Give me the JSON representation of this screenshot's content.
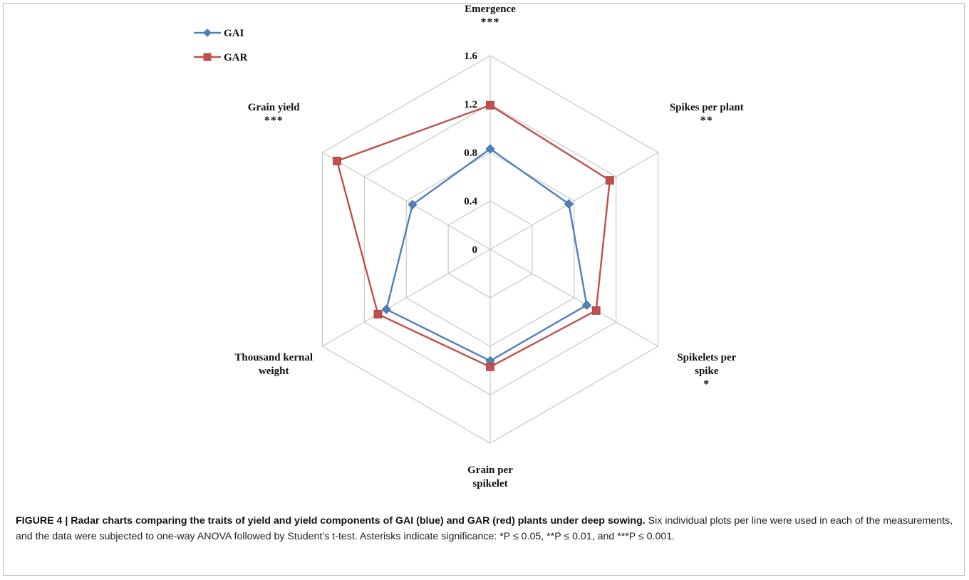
{
  "chart_data": {
    "type": "radar",
    "axes": [
      {
        "label": [
          "Emergence"
        ],
        "sig": "***"
      },
      {
        "label": [
          "Spikes per plant"
        ],
        "sig": "**"
      },
      {
        "label": [
          "Spikelets per",
          "spike"
        ],
        "sig": "*"
      },
      {
        "label": [
          "Grain per",
          "spikelet"
        ],
        "sig": ""
      },
      {
        "label": [
          "Thousand kernal",
          "weight"
        ],
        "sig": ""
      },
      {
        "label": [
          "Grain yield"
        ],
        "sig": "***"
      }
    ],
    "ticks": [
      0,
      0.4,
      0.8,
      1.2,
      1.6
    ],
    "tick_labels": [
      "0",
      "0.4",
      "0.8",
      "1.2",
      "1.6"
    ],
    "range": [
      0,
      1.6
    ],
    "grid": true,
    "legend_position": "top-left",
    "series": [
      {
        "name": "GAI",
        "color": "#4f81bd",
        "marker": "diamond",
        "values": [
          0.83,
          0.75,
          0.92,
          0.92,
          0.99,
          0.74
        ]
      },
      {
        "name": "GAR",
        "color": "#c0504d",
        "marker": "square",
        "values": [
          1.19,
          1.14,
          1.01,
          0.97,
          1.07,
          1.46
        ]
      }
    ]
  },
  "caption": {
    "figure_label": "FIGURE 4 | Radar charts comparing the traits of yield and yield components of GAI (blue) and GAR (red) plants under deep sowing.",
    "text": "Six individual plots per line were used in each of the measurements, and the data were subjected to one-way ANOVA followed by Student’s t-test. Asterisks indicate significance: *P ≤ 0.05, **P ≤ 0.01, and ***P ≤ 0.001."
  }
}
